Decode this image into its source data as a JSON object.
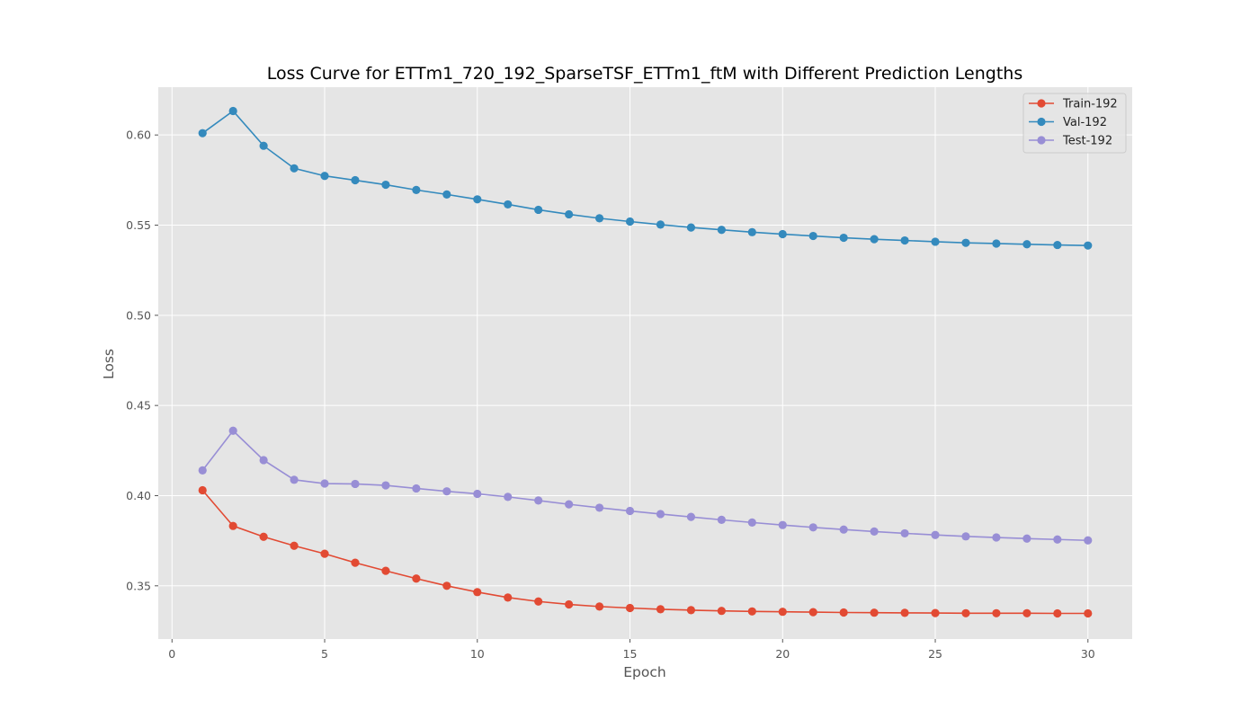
{
  "chart_data": {
    "type": "line",
    "title": "Loss Curve for ETTm1_720_192_SparseTSF_ETTm1_ftM with Different Prediction Lengths",
    "xlabel": "Epoch",
    "ylabel": "Loss",
    "xlim": [
      -0.45,
      31.45
    ],
    "ylim": [
      0.3205,
      0.6265
    ],
    "xticks": [
      0,
      5,
      10,
      15,
      20,
      25,
      30
    ],
    "yticks": [
      0.35,
      0.4,
      0.45,
      0.5,
      0.55,
      0.6
    ],
    "ytick_labels": [
      "0.35",
      "0.40",
      "0.45",
      "0.50",
      "0.55",
      "0.60"
    ],
    "grid": true,
    "style": "ggplot",
    "legend_position": "upper right",
    "x": [
      1,
      2,
      3,
      4,
      5,
      6,
      7,
      8,
      9,
      10,
      11,
      12,
      13,
      14,
      15,
      16,
      17,
      18,
      19,
      20,
      21,
      22,
      23,
      24,
      25,
      26,
      27,
      28,
      29,
      30
    ],
    "series": [
      {
        "name": "Train-192",
        "color": "#E24A33",
        "values": [
          0.403,
          0.3832,
          0.3772,
          0.3722,
          0.3678,
          0.3628,
          0.3583,
          0.354,
          0.35,
          0.3465,
          0.3435,
          0.3413,
          0.3397,
          0.3385,
          0.3377,
          0.337,
          0.3365,
          0.3361,
          0.3358,
          0.3356,
          0.3354,
          0.3352,
          0.3351,
          0.335,
          0.3349,
          0.3348,
          0.3348,
          0.3348,
          0.3347,
          0.3347
        ]
      },
      {
        "name": "Val-192",
        "color": "#348ABD",
        "values": [
          0.601,
          0.6133,
          0.594,
          0.5815,
          0.5773,
          0.5749,
          0.5724,
          0.5695,
          0.567,
          0.5643,
          0.5615,
          0.5585,
          0.556,
          0.5538,
          0.552,
          0.5503,
          0.5487,
          0.5474,
          0.5461,
          0.545,
          0.544,
          0.543,
          0.5422,
          0.5415,
          0.5408,
          0.5402,
          0.5398,
          0.5394,
          0.539,
          0.5387
        ]
      },
      {
        "name": "Test-192",
        "color": "#988ED5",
        "values": [
          0.414,
          0.436,
          0.4197,
          0.4088,
          0.4067,
          0.4065,
          0.4057,
          0.404,
          0.4024,
          0.401,
          0.3993,
          0.3973,
          0.3952,
          0.3933,
          0.3915,
          0.3898,
          0.3882,
          0.3866,
          0.3851,
          0.3837,
          0.3824,
          0.3812,
          0.3801,
          0.3791,
          0.3782,
          0.3774,
          0.3768,
          0.3762,
          0.3757,
          0.3752
        ]
      }
    ]
  }
}
